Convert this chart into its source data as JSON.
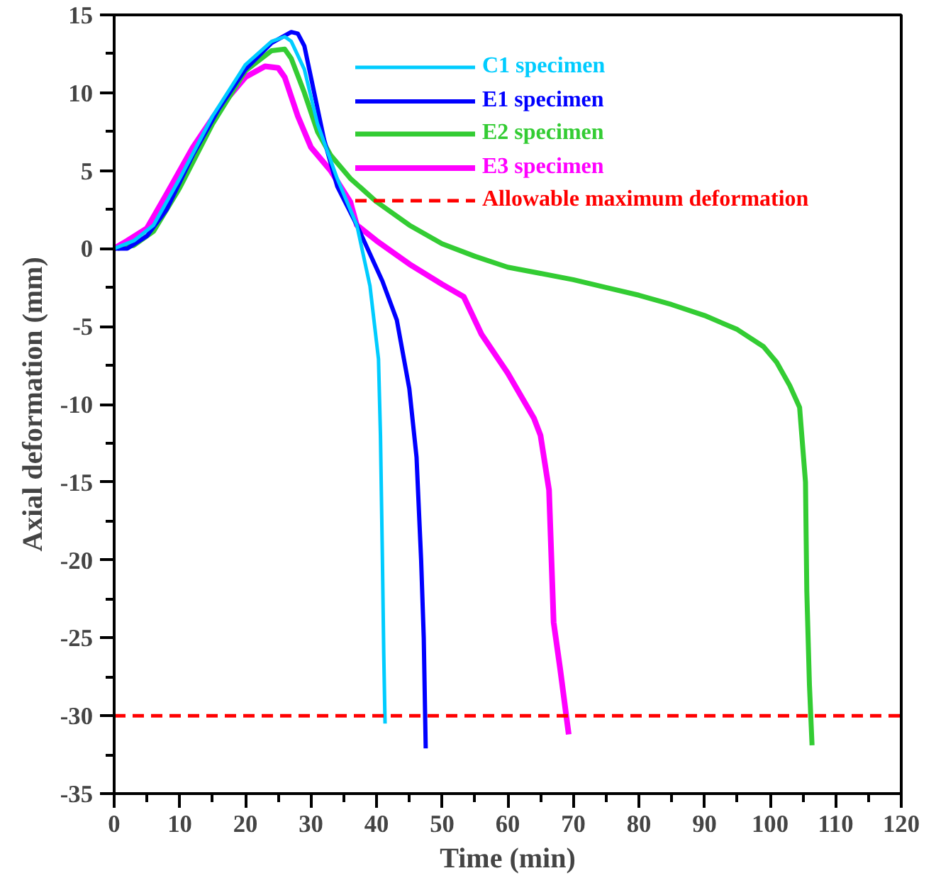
{
  "chart_data": {
    "type": "line",
    "xlabel": "Time (min)",
    "ylabel": "Axial deformation (mm)",
    "xlim": [
      0,
      120
    ],
    "ylim": [
      -35,
      15
    ],
    "xticks": [
      0,
      10,
      20,
      30,
      40,
      50,
      60,
      70,
      80,
      90,
      100,
      110,
      120
    ],
    "yticks": [
      -35,
      -30,
      -25,
      -20,
      -15,
      -10,
      -5,
      0,
      5,
      10,
      15
    ],
    "grid": false,
    "legend": "top right",
    "line_style": "solid",
    "marker": "none",
    "series": [
      {
        "name": "C1 specimen",
        "color": "#00ccff",
        "x": [
          0,
          3,
          6,
          10,
          15,
          20,
          24,
          26,
          27,
          29,
          31,
          34,
          37,
          39,
          40.3,
          40.6,
          40.9,
          41.1,
          41.3
        ],
        "values": [
          0,
          0.5,
          1.5,
          4.5,
          8.5,
          11.8,
          13.3,
          13.6,
          13.3,
          11.5,
          8,
          4.5,
          1.5,
          -2.4,
          -7.1,
          -12,
          -20,
          -26,
          -30.5
        ]
      },
      {
        "name": "E1 specimen",
        "color": "#0000ff",
        "x": [
          0,
          2,
          5,
          8,
          12,
          16,
          20,
          24,
          27,
          28,
          29,
          30,
          32,
          34,
          37,
          40.9,
          43.1,
          45,
          46.1,
          46.8,
          47.2,
          47.5
        ],
        "values": [
          0,
          0,
          0.8,
          2.5,
          6,
          9,
          11.5,
          13.2,
          13.9,
          13.8,
          13,
          11,
          7,
          4,
          1.5,
          -2.1,
          -4.6,
          -9,
          -13.4,
          -20,
          -25,
          -32.1
        ]
      },
      {
        "name": "E2 specimen",
        "color": "#33cc33",
        "x": [
          0.5,
          3,
          6,
          10,
          15,
          20,
          24,
          26,
          27,
          29,
          31,
          33,
          36,
          40,
          45,
          50,
          55,
          60,
          65,
          70,
          75,
          80,
          85,
          90,
          95,
          99,
          101,
          103,
          104.5,
          105.4,
          105.6,
          106,
          106.4
        ],
        "values": [
          0,
          0.2,
          1.1,
          3.9,
          8,
          11.4,
          12.7,
          12.8,
          12.2,
          10,
          7.5,
          6,
          4.5,
          3,
          1.5,
          0.3,
          -0.5,
          -1.2,
          -1.6,
          -2,
          -2.5,
          -3,
          -3.6,
          -4.3,
          -5.2,
          -6.3,
          -7.3,
          -8.8,
          -10.2,
          -15,
          -22,
          -28,
          -31.9
        ]
      },
      {
        "name": "E3 specimen",
        "color": "#ff00ff",
        "x": [
          0,
          2,
          5,
          8,
          12,
          16,
          20,
          23,
          25,
          26,
          28,
          30,
          33,
          36,
          37,
          40,
          45,
          50,
          53.3,
          56,
          60,
          64,
          65,
          66.3,
          67,
          68,
          69.3
        ],
        "values": [
          0,
          0.5,
          1.3,
          3.5,
          6.5,
          9,
          11,
          11.7,
          11.6,
          11,
          8.5,
          6.5,
          5,
          3,
          1.5,
          0.5,
          -1,
          -2.3,
          -3.1,
          -5.5,
          -8,
          -10.9,
          -12,
          -15.5,
          -24,
          -27,
          -31.2
        ]
      }
    ],
    "ref_lines": [
      {
        "axis": "y",
        "value": -30,
        "label": "Allowable maximum deformation",
        "color": "#ff0000",
        "line_style": "dashed"
      }
    ]
  }
}
